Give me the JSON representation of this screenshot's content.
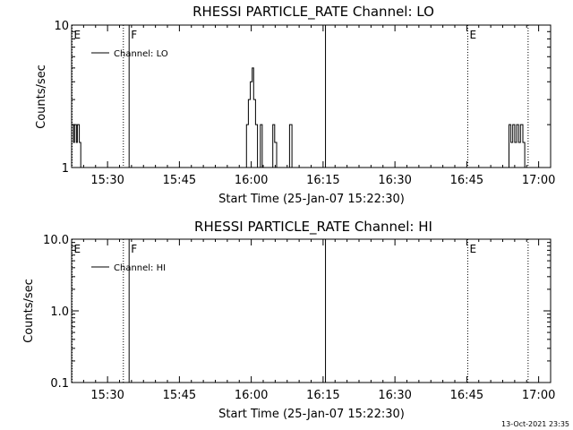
{
  "footer_timestamp": "13-Oct-2021 23:35",
  "chart_data": [
    {
      "type": "line",
      "title": "RHESSI PARTICLE_RATE Channel: LO",
      "xlabel": "Start Time (25-Jan-07 15:22:30)",
      "ylabel": "Counts/sec",
      "yscale": "log",
      "ylim": [
        1,
        10
      ],
      "xlim_minutes": [
        0,
        100
      ],
      "yticks": [
        {
          "value": 1,
          "label": "1"
        },
        {
          "value": 10,
          "label": "10"
        }
      ],
      "xticks": [
        {
          "minute": 7.5,
          "label": "15:30"
        },
        {
          "minute": 22.5,
          "label": "15:45"
        },
        {
          "minute": 37.5,
          "label": "16:00"
        },
        {
          "minute": 52.5,
          "label": "16:15"
        },
        {
          "minute": 67.5,
          "label": "16:30"
        },
        {
          "minute": 82.5,
          "label": "16:45"
        },
        {
          "minute": 97.5,
          "label": "17:00"
        }
      ],
      "legend": {
        "entries": [
          "Channel: LO"
        ],
        "placement": "top-left"
      },
      "series": [
        {
          "name": "Channel: LO",
          "x_minutes": [
            0.0,
            0.0,
            0.4,
            0.4,
            0.6,
            0.6,
            1.0,
            1.0,
            1.2,
            1.2,
            1.6,
            1.6,
            1.9,
            1.9,
            2.2,
            2.2,
            36.5,
            36.5,
            36.9,
            36.9,
            37.3,
            37.3,
            37.7,
            37.7,
            38.0,
            38.0,
            38.4,
            38.4,
            38.8,
            38.8,
            39.4,
            39.4,
            39.8,
            39.8,
            42.0,
            42.0,
            42.4,
            42.4,
            42.8,
            42.8,
            45.5,
            45.5,
            46.0,
            46.0,
            91.3,
            91.3,
            91.7,
            91.7,
            92.1,
            92.1,
            92.5,
            92.5,
            92.9,
            92.9,
            93.3,
            93.3,
            93.7,
            93.7,
            94.2,
            94.2,
            94.6,
            94.6
          ],
          "y": [
            1,
            2,
            2,
            1.5,
            1.5,
            2,
            2,
            1.5,
            1.5,
            2,
            2,
            1.5,
            1.5,
            1,
            1,
            1,
            1,
            2,
            2,
            3,
            3,
            4,
            4,
            5,
            5,
            3,
            3,
            2,
            2,
            1,
            1,
            2,
            2,
            1,
            1,
            2,
            2,
            1.5,
            1.5,
            1,
            1,
            2,
            2,
            1,
            1,
            2,
            2,
            1.5,
            1.5,
            2,
            2,
            1.5,
            1.5,
            2,
            2,
            1.5,
            1.5,
            2,
            2,
            1.5,
            1.5,
            1
          ]
        }
      ],
      "vertical_markers": [
        {
          "minute": 0.1,
          "style": "dotted",
          "label": "E"
        },
        {
          "minute": 10.8,
          "style": "dotted",
          "label": ""
        },
        {
          "minute": 12.0,
          "style": "solid",
          "label": "F"
        },
        {
          "minute": 53.0,
          "style": "solid",
          "label": ""
        },
        {
          "minute": 82.7,
          "style": "dotted",
          "label": "E"
        },
        {
          "minute": 95.3,
          "style": "dotted",
          "label": ""
        }
      ]
    },
    {
      "type": "line",
      "title": "RHESSI PARTICLE_RATE Channel: HI",
      "xlabel": "Start Time (25-Jan-07 15:22:30)",
      "ylabel": "Counts/sec",
      "yscale": "log",
      "ylim": [
        0.1,
        10
      ],
      "xlim_minutes": [
        0,
        100
      ],
      "yticks": [
        {
          "value": 0.1,
          "label": "0.1"
        },
        {
          "value": 1,
          "label": "1.0"
        },
        {
          "value": 10,
          "label": "10.0"
        }
      ],
      "xticks": [
        {
          "minute": 7.5,
          "label": "15:30"
        },
        {
          "minute": 22.5,
          "label": "15:45"
        },
        {
          "minute": 37.5,
          "label": "16:00"
        },
        {
          "minute": 52.5,
          "label": "16:15"
        },
        {
          "minute": 67.5,
          "label": "16:30"
        },
        {
          "minute": 82.5,
          "label": "16:45"
        },
        {
          "minute": 97.5,
          "label": "17:00"
        }
      ],
      "legend": {
        "entries": [
          "Channel: HI"
        ],
        "placement": "top-left"
      },
      "series": [
        {
          "name": "Channel: HI",
          "x_minutes": [],
          "y": []
        }
      ],
      "vertical_markers": [
        {
          "minute": 0.1,
          "style": "dotted",
          "label": "E"
        },
        {
          "minute": 10.8,
          "style": "dotted",
          "label": ""
        },
        {
          "minute": 12.0,
          "style": "solid",
          "label": "F"
        },
        {
          "minute": 53.0,
          "style": "solid",
          "label": ""
        },
        {
          "minute": 82.7,
          "style": "dotted",
          "label": "E"
        },
        {
          "minute": 95.3,
          "style": "dotted",
          "label": ""
        }
      ]
    }
  ]
}
